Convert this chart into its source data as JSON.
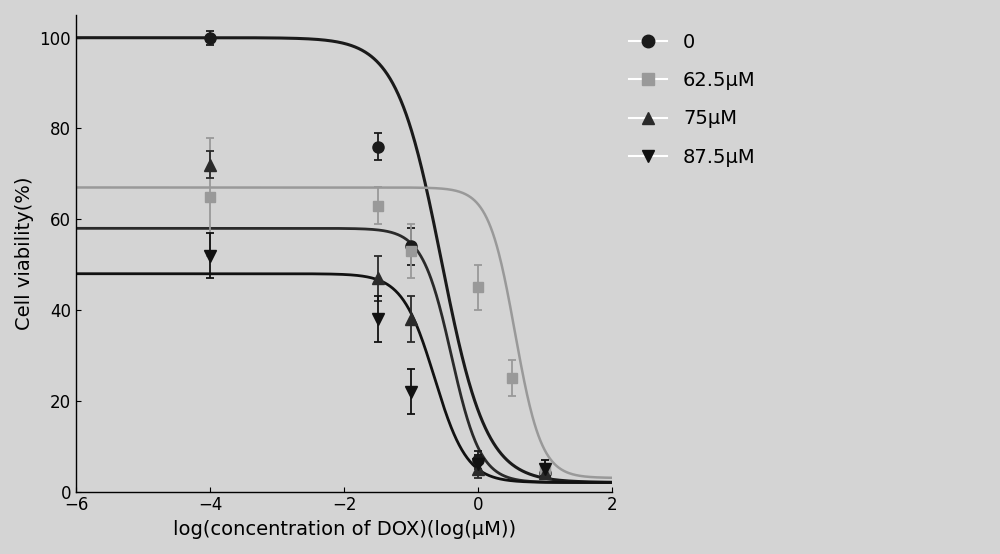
{
  "background_color": "#d4d4d4",
  "xlim": [
    -6,
    2
  ],
  "ylim": [
    0,
    105
  ],
  "xlabel": "log(concentration of DOX)(log(μM))",
  "ylabel": "Cell viability(%)",
  "xticks": [
    -6,
    -4,
    -2,
    0,
    2
  ],
  "yticks": [
    0,
    20,
    40,
    60,
    80,
    100
  ],
  "series": [
    {
      "label": "0",
      "color": "#1a1a1a",
      "marker": "o",
      "marker_size": 8,
      "line_width": 2.2,
      "x_data": [
        -4,
        -1.5,
        -1,
        0,
        1
      ],
      "y_data": [
        100,
        76,
        54,
        7,
        4
      ],
      "y_err": [
        1.5,
        3,
        4,
        2,
        1
      ],
      "sigmoid_top": 100,
      "sigmoid_bottom": 2,
      "sigmoid_ec50": -0.55,
      "sigmoid_hill": 1.3
    },
    {
      "label": "62.5μM",
      "color": "#999999",
      "marker": "s",
      "marker_size": 7,
      "line_width": 1.8,
      "x_data": [
        -4,
        -1.5,
        -1,
        0,
        0.5,
        1
      ],
      "y_data": [
        65,
        63,
        53,
        45,
        25,
        5
      ],
      "y_err": [
        13,
        4,
        6,
        5,
        4,
        2
      ],
      "sigmoid_top": 67,
      "sigmoid_bottom": 3,
      "sigmoid_ec50": 0.55,
      "sigmoid_hill": 2.2
    },
    {
      "label": "75μM",
      "color": "#2a2a2a",
      "marker": "^",
      "marker_size": 8,
      "line_width": 2.0,
      "x_data": [
        -4,
        -1.5,
        -1,
        0,
        1
      ],
      "y_data": [
        72,
        47,
        38,
        5,
        4
      ],
      "y_err": [
        3,
        5,
        5,
        2,
        1
      ],
      "sigmoid_top": 58,
      "sigmoid_bottom": 2,
      "sigmoid_ec50": -0.4,
      "sigmoid_hill": 2.0
    },
    {
      "label": "87.5μM",
      "color": "#111111",
      "marker": "v",
      "marker_size": 8,
      "line_width": 2.0,
      "x_data": [
        -4,
        -1.5,
        -1,
        0,
        1
      ],
      "y_data": [
        52,
        38,
        22,
        6,
        5
      ],
      "y_err": [
        5,
        5,
        5,
        2,
        2
      ],
      "sigmoid_top": 48,
      "sigmoid_bottom": 2,
      "sigmoid_ec50": -0.65,
      "sigmoid_hill": 1.8
    }
  ],
  "legend_fontsize": 14,
  "axis_label_fontsize": 14,
  "tick_fontsize": 12
}
